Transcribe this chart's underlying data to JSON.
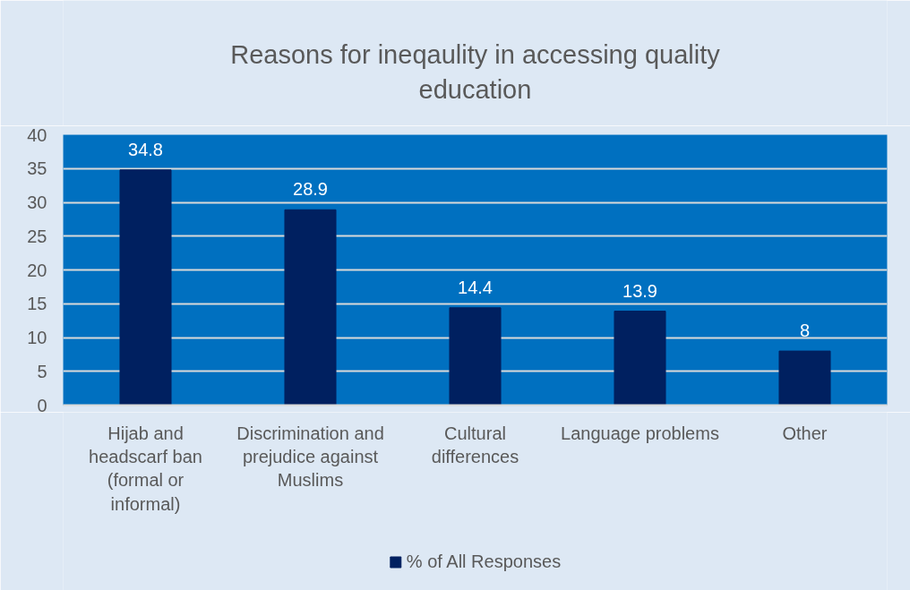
{
  "chart_data": {
    "type": "bar",
    "title": "Reasons for ineqaulity in accessing quality education",
    "categories": [
      "Hijab and headscarf ban (formal or informal)",
      "Discrimination and prejudice against Muslims",
      "Cultural differences",
      "Language problems",
      "Other"
    ],
    "series": [
      {
        "name": "% of All Responses",
        "color": "#002060",
        "values": [
          34.8,
          28.9,
          14.4,
          13.9,
          8
        ]
      }
    ],
    "ylim": [
      0,
      40
    ],
    "yticks": [
      0,
      5,
      10,
      15,
      20,
      25,
      30,
      35,
      40
    ],
    "grid": "y",
    "legend": "bottom",
    "data_labels": true
  }
}
